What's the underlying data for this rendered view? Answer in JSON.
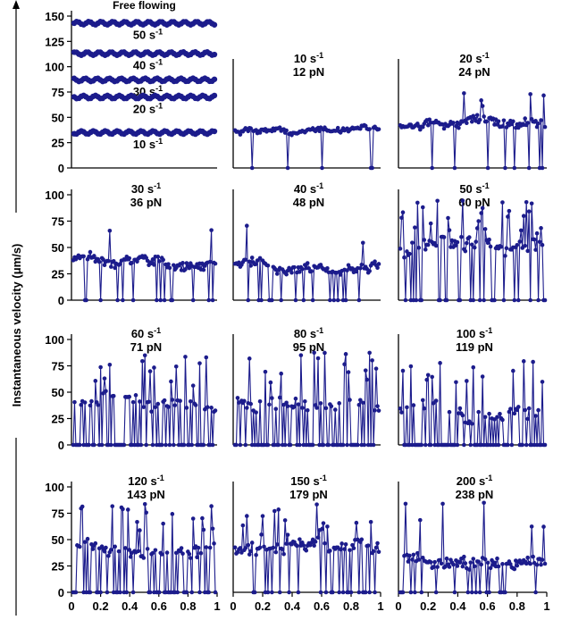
{
  "colors": {
    "series": "#1c1c8c",
    "axis": "#000000",
    "background": "#ffffff"
  },
  "chart_data": {
    "type": "line",
    "ylabel": "Instantaneous velocity (μm/s)",
    "xlabel": "",
    "xlim": [
      0,
      1
    ],
    "grid": false,
    "panels": [
      {
        "id": "free",
        "title": "Free flowing",
        "ylim": [
          0,
          150
        ],
        "yticks": [
          0,
          25,
          50,
          75,
          100,
          125,
          150
        ],
        "xticks": [],
        "series": [
          {
            "name": "50 s-1",
            "label_base": "50 s",
            "label_sup": "-1",
            "mean": 143,
            "amp": 1.6
          },
          {
            "name": "40 s-1",
            "label_base": "40 s",
            "label_sup": "-1",
            "mean": 113,
            "amp": 1.6
          },
          {
            "name": "30 s-1",
            "label_base": "30 s",
            "label_sup": "-1",
            "mean": 87,
            "amp": 1.6
          },
          {
            "name": "20 s-1",
            "label_base": "20 s",
            "label_sup": "-1",
            "mean": 70,
            "amp": 1.6
          },
          {
            "name": "10 s-1",
            "label_base": "10 s",
            "label_sup": "-1",
            "mean": 35,
            "amp": 1.6
          }
        ]
      },
      {
        "id": "p10",
        "shear_base": "10 s",
        "shear_sup": "-1",
        "force": "12 pN",
        "ylim": [
          0,
          100
        ],
        "yticks": [],
        "xticks": [],
        "profile": {
          "mean": 35,
          "spread": 5,
          "pause": 0.06,
          "spike": 0.0
        }
      },
      {
        "id": "p20",
        "shear_base": "20 s",
        "shear_sup": "-1",
        "force": "24 pN",
        "ylim": [
          0,
          100
        ],
        "yticks": [],
        "xticks": [],
        "profile": {
          "mean": 40,
          "spread": 9,
          "pause": 0.07,
          "spike": 0.08
        }
      },
      {
        "id": "p30",
        "shear_base": "30 s",
        "shear_sup": "-1",
        "force": "36 pN",
        "ylim": [
          0,
          100
        ],
        "yticks": [
          0,
          25,
          50,
          75,
          100
        ],
        "xticks": [],
        "profile": {
          "mean": 38,
          "spread": 9,
          "pause": 0.1,
          "spike": 0.03
        }
      },
      {
        "id": "p40",
        "shear_base": "40 s",
        "shear_sup": "-1",
        "force": "48 pN",
        "ylim": [
          0,
          100
        ],
        "yticks": [],
        "xticks": [],
        "profile": {
          "mean": 36,
          "spread": 9,
          "pause": 0.16,
          "spike": 0.04
        }
      },
      {
        "id": "p50",
        "shear_base": "50 s",
        "shear_sup": "-1",
        "force": "60 pN",
        "ylim": [
          0,
          100
        ],
        "yticks": [],
        "xticks": [],
        "profile": {
          "mean": 42,
          "spread": 14,
          "pause": 0.3,
          "spike": 0.2
        }
      },
      {
        "id": "p60",
        "shear_base": "60 s",
        "shear_sup": "-1",
        "force": "71 pN",
        "ylim": [
          0,
          100
        ],
        "yticks": [
          0,
          25,
          50,
          75,
          100
        ],
        "xticks": [],
        "profile": {
          "mean": 38,
          "spread": 12,
          "pause": 0.45,
          "spike": 0.12
        }
      },
      {
        "id": "p80",
        "shear_base": "80 s",
        "shear_sup": "-1",
        "force": "95 pN",
        "ylim": [
          0,
          100
        ],
        "yticks": [],
        "xticks": [],
        "profile": {
          "mean": 40,
          "spread": 12,
          "pause": 0.45,
          "spike": 0.14
        }
      },
      {
        "id": "p100",
        "shear_base": "100 s",
        "shear_sup": "-1",
        "force": "119 pN",
        "ylim": [
          0,
          100
        ],
        "yticks": [],
        "xticks": [],
        "profile": {
          "mean": 34,
          "spread": 12,
          "pause": 0.55,
          "spike": 0.1
        }
      },
      {
        "id": "p120",
        "shear_base": "120 s",
        "shear_sup": "-1",
        "force": "143 pN",
        "ylim": [
          0,
          100
        ],
        "yticks": [
          0,
          25,
          50,
          75,
          100
        ],
        "xticks": [
          "0",
          "0.2",
          "0.4",
          "0.6",
          "0.8",
          "1"
        ],
        "profile": {
          "mean": 40,
          "spread": 12,
          "pause": 0.35,
          "spike": 0.14
        }
      },
      {
        "id": "p150",
        "shear_base": "150 s",
        "shear_sup": "-1",
        "force": "179 pN",
        "ylim": [
          0,
          100
        ],
        "yticks": [],
        "xticks": [
          "0",
          "0.2",
          "0.4",
          "0.6",
          "0.8",
          "1"
        ],
        "profile": {
          "mean": 36,
          "spread": 12,
          "pause": 0.25,
          "spike": 0.1
        }
      },
      {
        "id": "p200",
        "shear_base": "200 s",
        "shear_sup": "-1",
        "force": "238 pN",
        "ylim": [
          0,
          100
        ],
        "yticks": [],
        "xticks": [
          "0",
          "0.2",
          "0.4",
          "0.6",
          "0.8",
          "1"
        ],
        "profile": {
          "mean": 38,
          "spread": 12,
          "pause": 0.18,
          "spike": 0.06
        }
      }
    ]
  }
}
